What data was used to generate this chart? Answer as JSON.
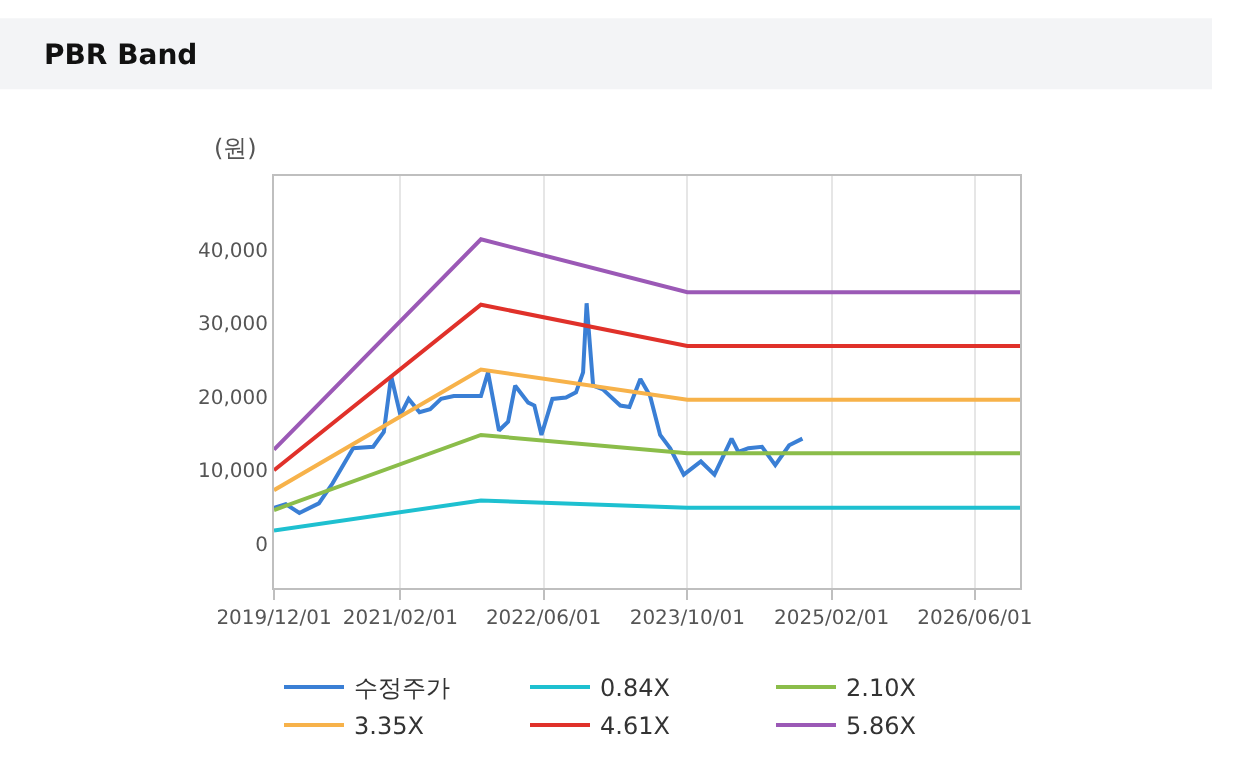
{
  "chart_data": {
    "type": "line",
    "title": "PBR Band",
    "ylabel": "(원)",
    "xlim": [
      "2019-12-01",
      "2026-11-01"
    ],
    "xticks": [
      {
        "value": "2019-12-01",
        "label": "2019/12/01"
      },
      {
        "value": "2021-02-01",
        "label": "2021/02/01"
      },
      {
        "value": "2022-06-01",
        "label": "2022/06/01"
      },
      {
        "value": "2023-10-01",
        "label": "2023/10/01"
      },
      {
        "value": "2025-02-01",
        "label": "2025/02/01"
      },
      {
        "value": "2026-06-01",
        "label": "2026/06/01"
      }
    ],
    "ylim": [
      -6000,
      50000
    ],
    "yticks": [
      {
        "value": 0,
        "label": "0"
      },
      {
        "value": 10000,
        "label": "10,000"
      },
      {
        "value": 20000,
        "label": "20,000"
      },
      {
        "value": 30000,
        "label": "30,000"
      },
      {
        "value": 40000,
        "label": "40,000"
      }
    ],
    "grid": "x",
    "legend": "bottom",
    "marker": "none",
    "line_style": "solid",
    "series": [
      {
        "name": "수정주가",
        "color": "#3a7fd5",
        "x": [
          "2019-12-01",
          "2020-01-10",
          "2020-02-25",
          "2020-05-01",
          "2020-06-16",
          "2020-08-25",
          "2020-11-01",
          "2020-12-07",
          "2021-01-01",
          "2021-01-22",
          "2021-02-01",
          "2021-03-01",
          "2021-04-07",
          "2021-05-13",
          "2021-06-19",
          "2021-08-01",
          "2021-11-01",
          "2021-11-25",
          "2022-01-01",
          "2022-02-01",
          "2022-02-25",
          "2022-04-10",
          "2022-05-01",
          "2022-05-25",
          "2022-07-01",
          "2022-08-16",
          "2022-09-19",
          "2022-10-13",
          "2022-10-25",
          "2022-11-16",
          "2022-12-19",
          "2023-02-16",
          "2023-03-19",
          "2023-04-25",
          "2023-05-28",
          "2023-07-01",
          "2023-08-04",
          "2023-09-19",
          "2023-11-16",
          "2024-01-01",
          "2024-02-28",
          "2024-03-22",
          "2024-04-25",
          "2024-06-10",
          "2024-07-25",
          "2024-09-10",
          "2024-10-25"
        ],
        "values": [
          4900,
          5400,
          4200,
          5500,
          8200,
          13000,
          13200,
          15200,
          22800,
          19200,
          17500,
          19700,
          17900,
          18300,
          19700,
          20100,
          20100,
          23300,
          15400,
          16600,
          21500,
          19200,
          18800,
          14800,
          19700,
          19900,
          20600,
          23300,
          32700,
          21500,
          21000,
          18800,
          18600,
          22400,
          20100,
          14800,
          13000,
          9400,
          11200,
          9400,
          14300,
          12500,
          13000,
          13200,
          10700,
          13400,
          14300
        ]
      },
      {
        "name": "0.84X",
        "color": "#1ec0d0",
        "x": [
          "2019-12-01",
          "2021-11-01",
          "2023-10-01",
          "2026-11-01"
        ],
        "values": [
          1800,
          5900,
          4900,
          4900
        ]
      },
      {
        "name": "2.10X",
        "color": "#8bbd4a",
        "x": [
          "2019-12-01",
          "2021-11-01",
          "2023-10-01",
          "2026-11-01"
        ],
        "values": [
          4600,
          14800,
          12300,
          12300
        ]
      },
      {
        "name": "3.35X",
        "color": "#f7b24a",
        "x": [
          "2019-12-01",
          "2021-11-01",
          "2023-10-01",
          "2026-11-01"
        ],
        "values": [
          7300,
          23700,
          19600,
          19600
        ]
      },
      {
        "name": "4.61X",
        "color": "#e0312a",
        "x": [
          "2019-12-01",
          "2021-11-01",
          "2023-10-01",
          "2026-11-01"
        ],
        "values": [
          10000,
          32500,
          26900,
          26900
        ]
      },
      {
        "name": "5.86X",
        "color": "#9b59b6",
        "x": [
          "2019-12-01",
          "2021-11-01",
          "2023-10-01",
          "2026-11-01"
        ],
        "values": [
          12800,
          41400,
          34200,
          34200
        ]
      }
    ]
  }
}
